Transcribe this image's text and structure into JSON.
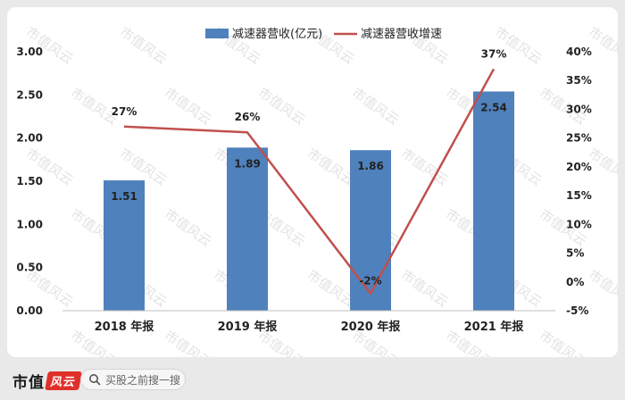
{
  "chart_data": {
    "type": "bar+line",
    "categories": [
      "2018 年报",
      "2019 年报",
      "2020 年报",
      "2021 年报"
    ],
    "series": [
      {
        "name": "减速器营收(亿元)",
        "type": "bar",
        "axis": "left",
        "values": [
          1.51,
          1.89,
          1.86,
          2.54
        ],
        "labels": [
          "1.51",
          "1.89",
          "1.86",
          "2.54"
        ],
        "color": "#4f81bd"
      },
      {
        "name": "减速器营收增速",
        "type": "line",
        "axis": "right",
        "values": [
          27,
          26,
          -2,
          37
        ],
        "labels": [
          "27%",
          "26%",
          "-2%",
          "37%"
        ],
        "color": "#c0504d"
      }
    ],
    "left_axis": {
      "ylim": [
        0,
        3
      ],
      "ticks": [
        "0.00",
        "0.50",
        "1.00",
        "1.50",
        "2.00",
        "2.50",
        "3.00"
      ]
    },
    "right_axis": {
      "ylim": [
        -5,
        40
      ],
      "ticks": [
        "-5%",
        "0%",
        "5%",
        "10%",
        "15%",
        "20%",
        "25%",
        "30%",
        "35%",
        "40%"
      ]
    },
    "grid": false,
    "legend_position": "top-center"
  },
  "watermark": "市值风云",
  "footer": {
    "brand_text": "市值",
    "brand_mark": "风云",
    "search_placeholder": "买股之前搜一搜"
  },
  "colors": {
    "bar": "#4f81bd",
    "line": "#c0504d",
    "card_bg": "#ffffff",
    "page_bg": "#e9e9e9"
  }
}
